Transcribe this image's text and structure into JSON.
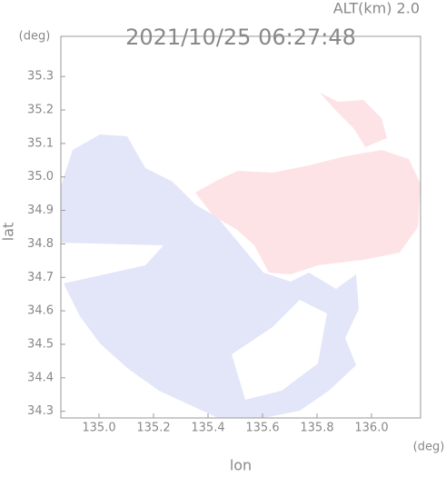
{
  "chart_data": {
    "type": "map",
    "title": "2021/10/25 06:27:48",
    "subtitle": "ALT(km)  2.0",
    "x_label": "lon",
    "y_label": "lat",
    "x_unit": "(deg)",
    "y_unit": "(deg)",
    "xlim": [
      134.86,
      136.18
    ],
    "ylim": [
      34.28,
      35.42
    ],
    "xticks": [
      {
        "value": 135,
        "label": "135.0"
      },
      135.2,
      135.4,
      135.6,
      135.8,
      {
        "value": 136,
        "label": "136.0"
      }
    ],
    "yticks": [
      34.3,
      34.4,
      34.5,
      34.6,
      34.7,
      34.8,
      34.9,
      {
        "value": 35,
        "label": "35.0"
      },
      35.1,
      35.2,
      35.3
    ]
  }
}
